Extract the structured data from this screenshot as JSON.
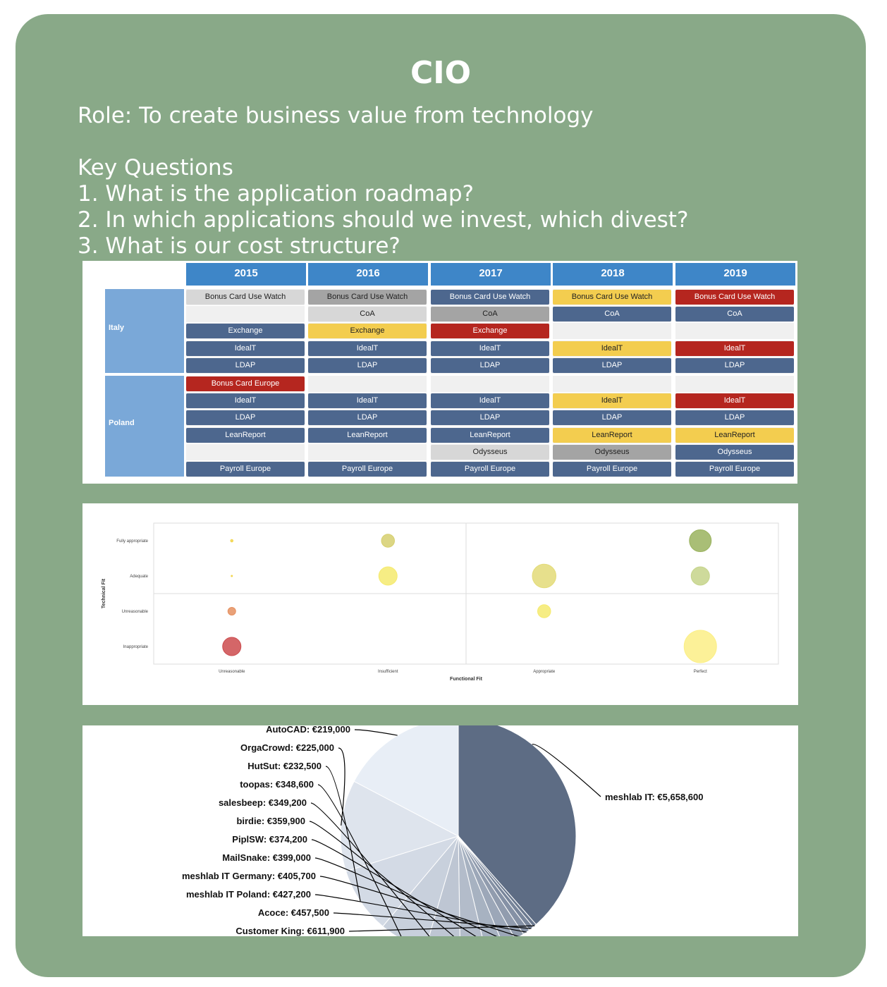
{
  "header": {
    "title": "CIO",
    "role": "Role: To create business value from technology",
    "key_questions_title": "Key Questions",
    "questions": [
      "1. What is the application roadmap?",
      "2. In which applications should we invest, which divest?",
      "3. What is our cost structure?"
    ]
  },
  "colors": {
    "card": "#89a988",
    "header_blue": "#3e86c8",
    "country_blue": "#7aa8d8",
    "app_blue": "#4d678e",
    "app_yellow": "#f3cd4f",
    "app_red": "#b5261f",
    "app_light_gray": "#d7d7d7",
    "app_mid_gray": "#a4a4a4"
  },
  "roadmap": {
    "years": [
      "2015",
      "2016",
      "2017",
      "2018",
      "2019"
    ],
    "groups": [
      {
        "country": "Italy",
        "rows": [
          [
            "Bonus Card Use Watch|lgray",
            "Bonus Card Use Watch|mgray",
            "Bonus Card Use Watch|blue",
            "Bonus Card Use Watch|yellow",
            "Bonus Card Use Watch|red"
          ],
          [
            "",
            "CoA|lgray",
            "CoA|mgray",
            "CoA|blue",
            "CoA|blue"
          ],
          [
            "Exchange|blue",
            "Exchange|yellow",
            "Exchange|red",
            "",
            ""
          ],
          [
            "IdealT|blue",
            "IdealT|blue",
            "IdealT|blue",
            "IdealT|yellow",
            "IdealT|red"
          ],
          [
            "LDAP|blue",
            "LDAP|blue",
            "LDAP|blue",
            "LDAP|blue",
            "LDAP|blue"
          ]
        ]
      },
      {
        "country": "Poland",
        "rows": [
          [
            "Bonus Card Europe|red",
            "",
            "",
            "",
            ""
          ],
          [
            "IdealT|blue",
            "IdealT|blue",
            "IdealT|blue",
            "IdealT|yellow",
            "IdealT|red"
          ],
          [
            "LDAP|blue",
            "LDAP|blue",
            "LDAP|blue",
            "LDAP|blue",
            "LDAP|blue"
          ],
          [
            "LeanReport|blue",
            "LeanReport|blue",
            "LeanReport|blue",
            "LeanReport|yellow",
            "LeanReport|yellow"
          ],
          [
            "",
            "",
            "Odysseus|lgray",
            "Odysseus|mgray",
            "Odysseus|blue"
          ],
          [
            "Payroll Europe|blue",
            "Payroll Europe|blue",
            "Payroll Europe|blue",
            "Payroll Europe|blue",
            "Payroll Europe|blue"
          ]
        ]
      }
    ]
  },
  "chart_data": [
    {
      "type": "scatter",
      "subtype": "bubble",
      "title": "",
      "xlabel": "Functional Fit",
      "ylabel": "Technical Fit",
      "x_categories": [
        "Unreasonable",
        "Insufficient",
        "Appropriate",
        "Perfect"
      ],
      "y_categories": [
        "Inappropriate",
        "Unreasonable",
        "Adequate",
        "Fully appropriate"
      ],
      "points": [
        {
          "x": "Unreasonable",
          "y": "Fully appropriate",
          "size": 1,
          "color": "#f2d54a"
        },
        {
          "x": "Unreasonable",
          "y": "Adequate",
          "size": 0.3,
          "color": "#f2d54a"
        },
        {
          "x": "Unreasonable",
          "y": "Unreasonable",
          "size": 4,
          "color": "#e59060"
        },
        {
          "x": "Unreasonable",
          "y": "Inappropriate",
          "size": 10,
          "color": "#cc4b4e"
        },
        {
          "x": "Insufficient",
          "y": "Fully appropriate",
          "size": 7,
          "color": "#d6cf6e"
        },
        {
          "x": "Insufficient",
          "y": "Adequate",
          "size": 10,
          "color": "#f5ea6e"
        },
        {
          "x": "Appropriate",
          "y": "Adequate",
          "size": 13,
          "color": "#e3db78"
        },
        {
          "x": "Appropriate",
          "y": "Unreasonable",
          "size": 7,
          "color": "#f5ea6e"
        },
        {
          "x": "Perfect",
          "y": "Fully appropriate",
          "size": 12,
          "color": "#9ab35e"
        },
        {
          "x": "Perfect",
          "y": "Adequate",
          "size": 10,
          "color": "#c5d48a"
        },
        {
          "x": "Perfect",
          "y": "Inappropriate",
          "size": 18,
          "color": "#fbef86"
        }
      ]
    },
    {
      "type": "pie",
      "title": "",
      "labels": [
        "meshlab IT",
        "AutoCAD",
        "OrgaCrowd",
        "HutSut",
        "toopas",
        "salesbeep",
        "birdie",
        "PiplSW",
        "MailSnake",
        "meshlab IT Germany",
        "meshlab IT Poland",
        "Acoce",
        "Customer King"
      ],
      "values": [
        5658600,
        219000,
        225000,
        232500,
        348600,
        349200,
        359900,
        374200,
        399000,
        405700,
        427200,
        457500,
        611900
      ],
      "display_labels": [
        "meshlab IT: €5,658,600",
        "AutoCAD: €219,000",
        "OrgaCrowd: €225,000",
        "HutSut: €232,500",
        "toopas: €348,600",
        "salesbeep: €349,200",
        "birdie: €359,900",
        "PiplSW: €374,200",
        "MailSnake: €399,000",
        "meshlab IT Germany: €405,700",
        "meshlab IT Poland: €427,200",
        "Acoce: €457,500",
        "Customer King: €611,900"
      ]
    }
  ]
}
